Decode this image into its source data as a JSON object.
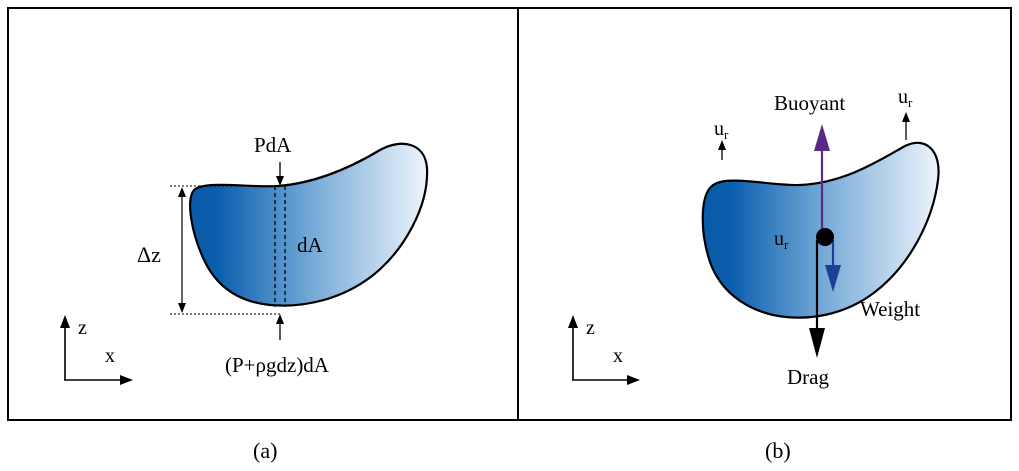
{
  "panel_a": {
    "top_force": "PdA",
    "height_label": "Δz",
    "area_label": "dA",
    "bottom_force": "(P+ρgdz)dA",
    "axis_z": "z",
    "axis_x": "x",
    "caption": "(a)"
  },
  "panel_b": {
    "buoyant": "Buoyant",
    "ur_base": "u",
    "ur_sub": "r",
    "weight": "Weight",
    "drag": "Drag",
    "axis_z": "z",
    "axis_x": "x",
    "caption": "(b)"
  },
  "colors": {
    "blob_dark": "#0a5aa8",
    "blob_light": "#eef4fb",
    "buoyant_arrow": "#5b2a86",
    "weight_arrow": "#1f3e96",
    "drag_arrow": "#000000"
  }
}
